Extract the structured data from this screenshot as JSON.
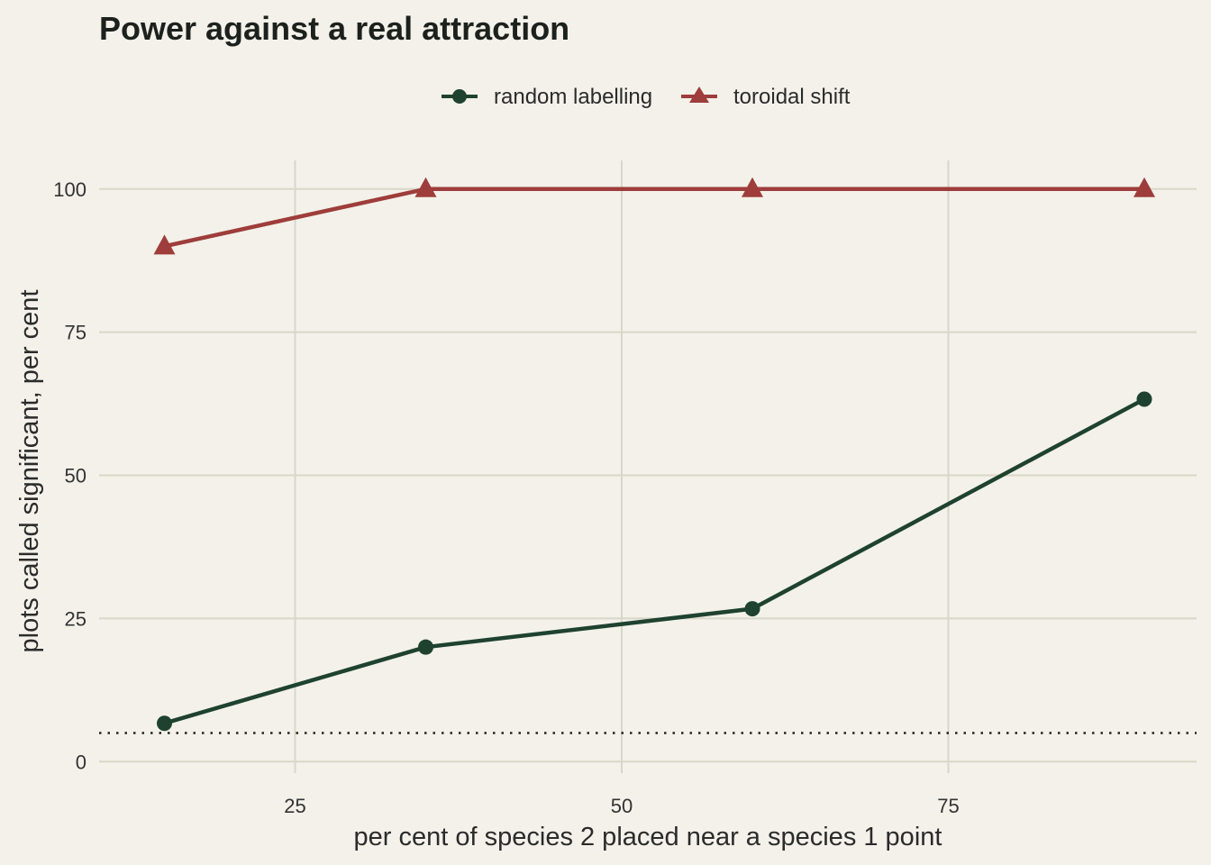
{
  "chart_data": {
    "type": "line",
    "title": "Power against a real attraction",
    "xlabel": "per cent of species 2 placed near a species 1 point",
    "ylabel": "plots called significant, per cent",
    "xlim": [
      10,
      94
    ],
    "ylim": [
      -2,
      105
    ],
    "x_ticks": [
      25,
      50,
      75
    ],
    "y_ticks": [
      0,
      25,
      50,
      75,
      100
    ],
    "x_tick_labels": [
      "25",
      "50",
      "75"
    ],
    "y_tick_labels": [
      "0",
      "25",
      "50",
      "75",
      "100"
    ],
    "x": [
      15,
      35,
      60,
      90
    ],
    "reference_line": {
      "y": 5,
      "style": "dotted"
    },
    "grid": true,
    "legend_position": "top",
    "series": [
      {
        "name": "random labelling",
        "marker": "circle",
        "color": "#1f4230",
        "values": [
          6.7,
          20,
          26.7,
          63.3
        ]
      },
      {
        "name": "toroidal shift",
        "marker": "triangle",
        "color": "#9e3d3b",
        "values": [
          90,
          100,
          100,
          100
        ]
      }
    ],
    "colors": {
      "background": "#f3f1ea",
      "grid": "#d8d7c8",
      "reference_line": "#222222"
    }
  }
}
